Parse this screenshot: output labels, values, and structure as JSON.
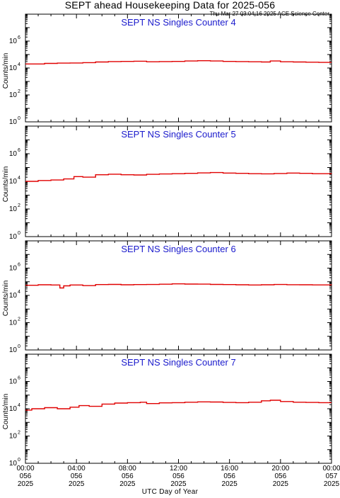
{
  "header": {
    "title": "SEPT ahead Housekeeping Data for 2025-056",
    "timestamp": "Thu Mar 27 03:04:16 2025 ACE Science Center"
  },
  "xaxis": {
    "label": "UTC Day of Year",
    "ticks": [
      {
        "time": "00:00",
        "day": "056",
        "year": "2025"
      },
      {
        "time": "04:00",
        "day": "056",
        "year": "2025"
      },
      {
        "time": "08:00",
        "day": "056",
        "year": "2025"
      },
      {
        "time": "12:00",
        "day": "056",
        "year": "2025"
      },
      {
        "time": "16:00",
        "day": "056",
        "year": "2025"
      },
      {
        "time": "20:00",
        "day": "056",
        "year": "2025"
      },
      {
        "time": "00:00",
        "day": "057",
        "year": "2025"
      }
    ]
  },
  "colors": {
    "series": "#e00000",
    "panel_title": "#1a1acc",
    "axes": "#000000"
  },
  "chart_data": [
    {
      "type": "line",
      "title": "SEPT NS Singles Counter 4",
      "ylabel": "Counts/min",
      "yscale": "log",
      "ylim": [
        1,
        100000000
      ],
      "ytick_labels": [
        [
          "10",
          "0"
        ],
        [
          "10",
          "2"
        ],
        [
          "10",
          "4"
        ],
        [
          "10",
          "6"
        ]
      ],
      "xlim": [
        0,
        24
      ],
      "x_unit": "hours UTC, day 056",
      "series": [
        {
          "x": [
            0,
            1.5,
            2.5,
            3.5,
            4.5,
            5.5,
            6.5,
            7.5,
            8.5,
            9.5,
            10.5,
            11.5,
            12.5,
            13.5,
            14.5,
            15.5,
            16.5,
            17.5,
            18.5,
            19.2,
            20,
            21,
            22,
            23,
            24
          ],
          "values": [
            20000,
            22000,
            23000,
            23500,
            25000,
            28000,
            30000,
            31000,
            32000,
            29000,
            30000,
            31000,
            33000,
            35000,
            33000,
            31000,
            30000,
            29000,
            28000,
            33000,
            29000,
            28000,
            27000,
            26000,
            26000
          ]
        }
      ]
    },
    {
      "type": "line",
      "title": "SEPT NS Singles Counter 5",
      "ylabel": "Counts/min",
      "yscale": "log",
      "ylim": [
        1,
        100000000
      ],
      "ytick_labels": [
        [
          "10",
          "0"
        ],
        [
          "10",
          "2"
        ],
        [
          "10",
          "4"
        ],
        [
          "10",
          "6"
        ]
      ],
      "xlim": [
        0,
        24
      ],
      "x_unit": "hours UTC, day 056",
      "series": [
        {
          "x": [
            0,
            1,
            2,
            3,
            3.8,
            4.5,
            5.5,
            6.5,
            7.5,
            8.5,
            9.5,
            10.5,
            11.5,
            12.5,
            13.5,
            14.5,
            15.5,
            16.5,
            17.5,
            18.5,
            19.5,
            20.5,
            21.5,
            22.5,
            24
          ],
          "values": [
            10000,
            11500,
            12500,
            15000,
            22000,
            20000,
            30000,
            33000,
            30000,
            29000,
            32000,
            34000,
            36000,
            38000,
            41000,
            43000,
            40000,
            38000,
            36000,
            35000,
            37000,
            40000,
            38000,
            36000,
            35000
          ]
        }
      ]
    },
    {
      "type": "line",
      "title": "SEPT NS Singles Counter 6",
      "ylabel": "Counts/min",
      "yscale": "log",
      "ylim": [
        1,
        100000000
      ],
      "ytick_labels": [
        [
          "10",
          "0"
        ],
        [
          "10",
          "2"
        ],
        [
          "10",
          "4"
        ],
        [
          "10",
          "6"
        ]
      ],
      "xlim": [
        0,
        24
      ],
      "x_unit": "hours UTC, day 056",
      "series": [
        {
          "x": [
            0,
            1,
            2,
            2.7,
            3,
            3.5,
            4.5,
            5.5,
            6.5,
            7.5,
            8.5,
            9.5,
            10.5,
            11.5,
            12.5,
            13.5,
            14.5,
            15.5,
            16.5,
            17.5,
            18.5,
            19.5,
            20.5,
            21.5,
            22.5,
            24
          ],
          "values": [
            55000,
            60000,
            58000,
            35000,
            50000,
            58000,
            52000,
            62000,
            64000,
            60000,
            62000,
            63000,
            66000,
            70000,
            68000,
            67000,
            64000,
            62000,
            60000,
            58000,
            60000,
            63000,
            61000,
            60000,
            59000,
            58000
          ]
        }
      ]
    },
    {
      "type": "line",
      "title": "SEPT NS Singles Counter 7",
      "ylabel": "Counts/min",
      "yscale": "log",
      "ylim": [
        1,
        100000000
      ],
      "ytick_labels": [
        [
          "10",
          "0"
        ],
        [
          "10",
          "2"
        ],
        [
          "10",
          "4"
        ],
        [
          "10",
          "6"
        ]
      ],
      "xlim": [
        0,
        24
      ],
      "x_unit": "hours UTC, day 056",
      "series": [
        {
          "x": [
            0,
            0.5,
            1.5,
            2.5,
            3.5,
            4.2,
            5,
            6,
            7,
            8,
            9,
            9.5,
            10.5,
            11.5,
            12.5,
            13.5,
            14.5,
            15.5,
            16.5,
            17.5,
            18.5,
            19.2,
            20,
            21,
            22,
            23,
            24
          ],
          "values": [
            8000,
            10000,
            12000,
            10000,
            13000,
            17000,
            15000,
            22000,
            26000,
            28000,
            30000,
            24000,
            27000,
            28000,
            30000,
            32000,
            31000,
            29000,
            28000,
            30000,
            38000,
            42000,
            34000,
            30000,
            29000,
            28000,
            28000
          ]
        }
      ]
    }
  ]
}
